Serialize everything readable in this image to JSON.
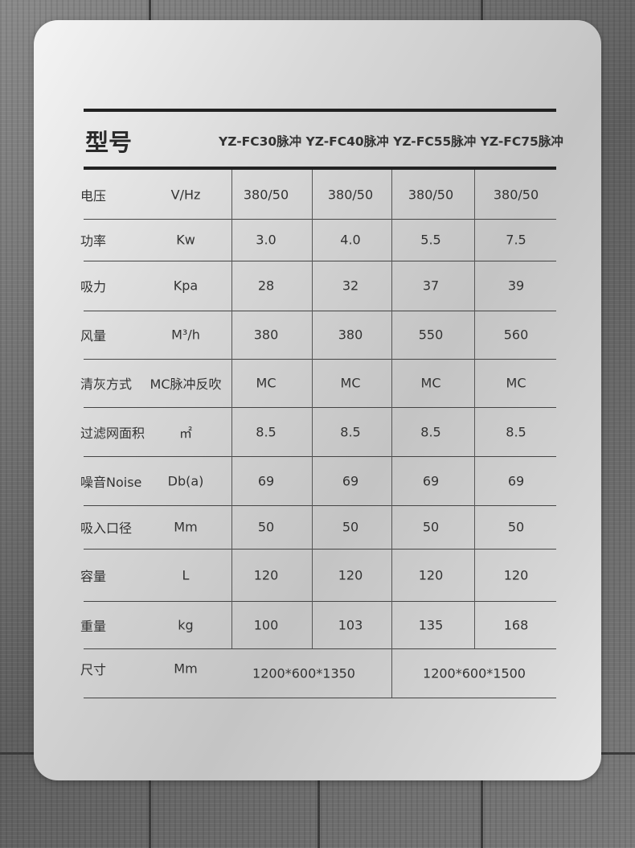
{
  "header": {
    "title": "型号",
    "models": "YZ-FC30脉冲 YZ-FC40脉冲 YZ-FC55脉冲 YZ-FC75脉冲"
  },
  "rows": [
    {
      "label": "电压",
      "unit": "V/Hz",
      "values": [
        "380/50",
        "380/50",
        "380/50",
        "380/50"
      ]
    },
    {
      "label": "功率",
      "unit": "Kw",
      "values": [
        "3.0",
        "4.0",
        "5.5",
        "7.5"
      ]
    },
    {
      "label": "吸力",
      "unit": "Kpa",
      "values": [
        "28",
        "32",
        "37",
        "39"
      ]
    },
    {
      "label": "风量",
      "unit": "M³/h",
      "values": [
        "380",
        "380",
        "550",
        "560"
      ]
    },
    {
      "label": "清灰方式",
      "unit": "MC脉冲反吹",
      "values": [
        "MC",
        "MC",
        "MC",
        "MC"
      ]
    },
    {
      "label": "过滤网面积",
      "unit": "㎡",
      "values": [
        "8.5",
        "8.5",
        "8.5",
        "8.5"
      ]
    },
    {
      "label": "噪音Noise",
      "unit": "Db(a)",
      "values": [
        "69",
        "69",
        "69",
        "69"
      ]
    },
    {
      "label": "吸入口径",
      "unit": "Mm",
      "values": [
        "50",
        "50",
        "50",
        "50"
      ]
    },
    {
      "label": "容量",
      "unit": "L",
      "values": [
        "120",
        "120",
        "120",
        "120"
      ]
    },
    {
      "label": "重量",
      "unit": "kg",
      "values": [
        "100",
        "103",
        "135",
        "168"
      ]
    },
    {
      "label": "尺寸",
      "unit": "Mm",
      "values": [
        "1200*600*1350",
        "1200*600*1500"
      ]
    }
  ]
}
